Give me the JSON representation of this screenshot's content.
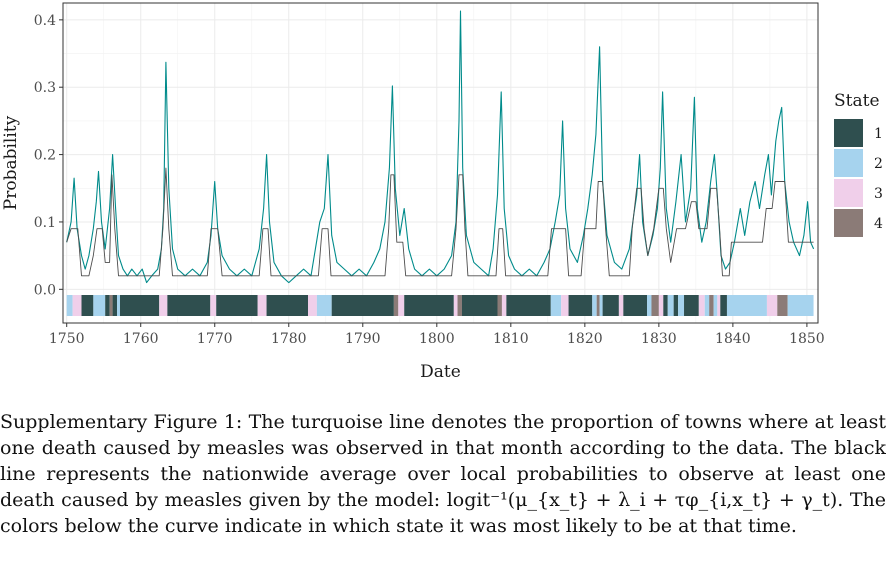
{
  "caption": "Supplementary Figure 1: The turquoise line denotes the proportion of towns where at least one death caused by measles was observed in that month according to the data. The black line represents the nationwide average over local probabilities to observe at least one death caused by measles given by the model: logit⁻¹(μ_{x_t} + λ_i + τφ_{i,x_t} + γ_t). The colors below the curve indicate in which state it was most likely to be at that time.",
  "chart_data": {
    "type": "line",
    "title": "",
    "xlabel": "Date",
    "ylabel": "Probability",
    "xlim": [
      1749.5,
      1851.5
    ],
    "ylim": [
      -0.05,
      0.425
    ],
    "x_ticks": [
      1750,
      1760,
      1770,
      1780,
      1790,
      1800,
      1810,
      1820,
      1830,
      1840,
      1850
    ],
    "y_ticks": [
      0.0,
      0.1,
      0.2,
      0.3,
      0.4
    ],
    "y_tick_labels": [
      "0.0",
      "0.1",
      "0.2",
      "0.3",
      "0.4"
    ],
    "grid": true,
    "legend": {
      "title": "State",
      "position": "right",
      "entries": [
        {
          "label": "1",
          "color": "#2f4f4f"
        },
        {
          "label": "2",
          "color": "#a6d3ee"
        },
        {
          "label": "3",
          "color": "#f0cfea"
        },
        {
          "label": "4",
          "color": "#8b7b77"
        }
      ]
    },
    "series": [
      {
        "color": "#008b8b",
        "points": [
          [
            1750,
            0.07
          ],
          [
            1750.6,
            0.1
          ],
          [
            1751,
            0.165
          ],
          [
            1751.4,
            0.09
          ],
          [
            1752,
            0.05
          ],
          [
            1752.5,
            0.03
          ],
          [
            1753,
            0.05
          ],
          [
            1753.6,
            0.09
          ],
          [
            1754,
            0.13
          ],
          [
            1754.3,
            0.175
          ],
          [
            1754.7,
            0.1
          ],
          [
            1755.2,
            0.06
          ],
          [
            1755.8,
            0.12
          ],
          [
            1756.2,
            0.2
          ],
          [
            1756.6,
            0.12
          ],
          [
            1757,
            0.05
          ],
          [
            1757.6,
            0.03
          ],
          [
            1758.2,
            0.02
          ],
          [
            1758.8,
            0.03
          ],
          [
            1759.5,
            0.02
          ],
          [
            1760.2,
            0.03
          ],
          [
            1760.8,
            0.01
          ],
          [
            1761.5,
            0.02
          ],
          [
            1762.3,
            0.03
          ],
          [
            1762.8,
            0.06
          ],
          [
            1763.1,
            0.12
          ],
          [
            1763.4,
            0.337
          ],
          [
            1763.8,
            0.15
          ],
          [
            1764.3,
            0.06
          ],
          [
            1765,
            0.03
          ],
          [
            1766,
            0.02
          ],
          [
            1767,
            0.03
          ],
          [
            1768,
            0.02
          ],
          [
            1769,
            0.04
          ],
          [
            1769.5,
            0.08
          ],
          [
            1770,
            0.16
          ],
          [
            1770.4,
            0.09
          ],
          [
            1771,
            0.05
          ],
          [
            1772,
            0.03
          ],
          [
            1773,
            0.02
          ],
          [
            1774,
            0.03
          ],
          [
            1775,
            0.02
          ],
          [
            1776,
            0.06
          ],
          [
            1776.6,
            0.12
          ],
          [
            1777,
            0.2
          ],
          [
            1777.4,
            0.1
          ],
          [
            1778,
            0.04
          ],
          [
            1779,
            0.02
          ],
          [
            1780,
            0.01
          ],
          [
            1781,
            0.02
          ],
          [
            1782,
            0.03
          ],
          [
            1783,
            0.02
          ],
          [
            1783.6,
            0.06
          ],
          [
            1784.2,
            0.1
          ],
          [
            1784.8,
            0.12
          ],
          [
            1785.3,
            0.2
          ],
          [
            1785.8,
            0.08
          ],
          [
            1786.5,
            0.04
          ],
          [
            1787.5,
            0.03
          ],
          [
            1788.5,
            0.02
          ],
          [
            1789.5,
            0.03
          ],
          [
            1790.5,
            0.02
          ],
          [
            1791.5,
            0.04
          ],
          [
            1792.3,
            0.06
          ],
          [
            1793,
            0.1
          ],
          [
            1793.6,
            0.18
          ],
          [
            1794,
            0.302
          ],
          [
            1794.4,
            0.15
          ],
          [
            1795,
            0.08
          ],
          [
            1795.6,
            0.12
          ],
          [
            1796.2,
            0.06
          ],
          [
            1797,
            0.03
          ],
          [
            1798,
            0.02
          ],
          [
            1799,
            0.03
          ],
          [
            1800,
            0.02
          ],
          [
            1801,
            0.03
          ],
          [
            1802,
            0.05
          ],
          [
            1802.6,
            0.1
          ],
          [
            1803,
            0.25
          ],
          [
            1803.2,
            0.413
          ],
          [
            1803.5,
            0.18
          ],
          [
            1804,
            0.08
          ],
          [
            1805,
            0.04
          ],
          [
            1806,
            0.03
          ],
          [
            1807,
            0.02
          ],
          [
            1807.6,
            0.06
          ],
          [
            1808.2,
            0.14
          ],
          [
            1808.7,
            0.293
          ],
          [
            1809.1,
            0.12
          ],
          [
            1809.7,
            0.05
          ],
          [
            1810.5,
            0.03
          ],
          [
            1811.5,
            0.02
          ],
          [
            1812.5,
            0.03
          ],
          [
            1813.5,
            0.02
          ],
          [
            1814.5,
            0.04
          ],
          [
            1815.3,
            0.06
          ],
          [
            1816,
            0.1
          ],
          [
            1816.6,
            0.14
          ],
          [
            1817,
            0.25
          ],
          [
            1817.4,
            0.12
          ],
          [
            1818,
            0.06
          ],
          [
            1819,
            0.04
          ],
          [
            1819.8,
            0.08
          ],
          [
            1820.4,
            0.12
          ],
          [
            1821,
            0.17
          ],
          [
            1821.5,
            0.23
          ],
          [
            1822,
            0.36
          ],
          [
            1822.4,
            0.16
          ],
          [
            1823,
            0.08
          ],
          [
            1824,
            0.04
          ],
          [
            1825,
            0.03
          ],
          [
            1826,
            0.06
          ],
          [
            1826.6,
            0.11
          ],
          [
            1827,
            0.14
          ],
          [
            1827.4,
            0.2
          ],
          [
            1827.8,
            0.1
          ],
          [
            1828.5,
            0.05
          ],
          [
            1829.2,
            0.08
          ],
          [
            1829.8,
            0.12
          ],
          [
            1830.2,
            0.18
          ],
          [
            1830.5,
            0.293
          ],
          [
            1831,
            0.12
          ],
          [
            1831.6,
            0.07
          ],
          [
            1832.3,
            0.13
          ],
          [
            1833,
            0.2
          ],
          [
            1833.6,
            0.1
          ],
          [
            1834.3,
            0.15
          ],
          [
            1834.8,
            0.285
          ],
          [
            1835.2,
            0.12
          ],
          [
            1835.8,
            0.07
          ],
          [
            1836.4,
            0.1
          ],
          [
            1837,
            0.16
          ],
          [
            1837.5,
            0.2
          ],
          [
            1837.9,
            0.14
          ],
          [
            1838.4,
            0.05
          ],
          [
            1839,
            0.03
          ],
          [
            1839.6,
            0.04
          ],
          [
            1840.2,
            0.07
          ],
          [
            1841,
            0.12
          ],
          [
            1841.6,
            0.08
          ],
          [
            1842.3,
            0.13
          ],
          [
            1843,
            0.16
          ],
          [
            1843.6,
            0.12
          ],
          [
            1844.3,
            0.17
          ],
          [
            1844.8,
            0.2
          ],
          [
            1845.2,
            0.14
          ],
          [
            1845.8,
            0.22
          ],
          [
            1846.2,
            0.25
          ],
          [
            1846.6,
            0.27
          ],
          [
            1847,
            0.16
          ],
          [
            1847.6,
            0.1
          ],
          [
            1848.2,
            0.07
          ],
          [
            1849,
            0.05
          ],
          [
            1849.6,
            0.08
          ],
          [
            1850.1,
            0.13
          ],
          [
            1850.5,
            0.07
          ],
          [
            1850.9,
            0.06
          ]
        ]
      },
      {
        "color": "#4d4d4d",
        "points": [
          [
            1750,
            0.07
          ],
          [
            1750.6,
            0.09
          ],
          [
            1751.5,
            0.09
          ],
          [
            1752,
            0.02
          ],
          [
            1753,
            0.02
          ],
          [
            1753.6,
            0.05
          ],
          [
            1754.1,
            0.09
          ],
          [
            1754.8,
            0.09
          ],
          [
            1755.2,
            0.04
          ],
          [
            1755.8,
            0.04
          ],
          [
            1756.1,
            0.17
          ],
          [
            1756.5,
            0.09
          ],
          [
            1757,
            0.02
          ],
          [
            1760,
            0.02
          ],
          [
            1762.5,
            0.02
          ],
          [
            1763,
            0.09
          ],
          [
            1763.4,
            0.18
          ],
          [
            1763.8,
            0.09
          ],
          [
            1764.3,
            0.02
          ],
          [
            1769,
            0.02
          ],
          [
            1769.5,
            0.09
          ],
          [
            1770.4,
            0.09
          ],
          [
            1771,
            0.02
          ],
          [
            1776,
            0.02
          ],
          [
            1776.5,
            0.09
          ],
          [
            1777.2,
            0.09
          ],
          [
            1777.6,
            0.02
          ],
          [
            1784,
            0.02
          ],
          [
            1784.5,
            0.09
          ],
          [
            1785.3,
            0.09
          ],
          [
            1785.7,
            0.02
          ],
          [
            1793,
            0.02
          ],
          [
            1793.5,
            0.09
          ],
          [
            1793.8,
            0.17
          ],
          [
            1794.2,
            0.17
          ],
          [
            1794.6,
            0.07
          ],
          [
            1795.4,
            0.07
          ],
          [
            1795.8,
            0.02
          ],
          [
            1802,
            0.02
          ],
          [
            1802.6,
            0.09
          ],
          [
            1803,
            0.17
          ],
          [
            1803.5,
            0.17
          ],
          [
            1803.8,
            0.09
          ],
          [
            1804.2,
            0.02
          ],
          [
            1808,
            0.02
          ],
          [
            1808.4,
            0.09
          ],
          [
            1808.9,
            0.09
          ],
          [
            1809.3,
            0.02
          ],
          [
            1815,
            0.02
          ],
          [
            1815.5,
            0.09
          ],
          [
            1817.4,
            0.09
          ],
          [
            1817.8,
            0.02
          ],
          [
            1819.5,
            0.02
          ],
          [
            1820,
            0.09
          ],
          [
            1821.5,
            0.09
          ],
          [
            1821.8,
            0.16
          ],
          [
            1822.4,
            0.16
          ],
          [
            1822.8,
            0.09
          ],
          [
            1823.3,
            0.02
          ],
          [
            1826,
            0.02
          ],
          [
            1826.4,
            0.09
          ],
          [
            1827,
            0.15
          ],
          [
            1827.6,
            0.15
          ],
          [
            1828,
            0.09
          ],
          [
            1828.5,
            0.05
          ],
          [
            1829.3,
            0.09
          ],
          [
            1830,
            0.15
          ],
          [
            1830.6,
            0.15
          ],
          [
            1831,
            0.09
          ],
          [
            1831.6,
            0.04
          ],
          [
            1832.4,
            0.09
          ],
          [
            1833.6,
            0.09
          ],
          [
            1834.4,
            0.13
          ],
          [
            1835,
            0.13
          ],
          [
            1835.4,
            0.09
          ],
          [
            1836.5,
            0.09
          ],
          [
            1837,
            0.15
          ],
          [
            1837.8,
            0.15
          ],
          [
            1838.2,
            0.09
          ],
          [
            1838.6,
            0.02
          ],
          [
            1839.5,
            0.02
          ],
          [
            1839.8,
            0.07
          ],
          [
            1844,
            0.07
          ],
          [
            1844.5,
            0.12
          ],
          [
            1845.3,
            0.12
          ],
          [
            1845.7,
            0.16
          ],
          [
            1847,
            0.16
          ],
          [
            1847.5,
            0.07
          ],
          [
            1850.9,
            0.07
          ]
        ]
      }
    ],
    "state_bar": [
      [
        1750,
        1750.8,
        2
      ],
      [
        1750.8,
        1752,
        3
      ],
      [
        1752,
        1753.6,
        1
      ],
      [
        1753.6,
        1755.2,
        2
      ],
      [
        1755.2,
        1755.8,
        1
      ],
      [
        1755.8,
        1756.2,
        4
      ],
      [
        1756.2,
        1756.8,
        1
      ],
      [
        1756.8,
        1757.2,
        2
      ],
      [
        1757.2,
        1762.5,
        1
      ],
      [
        1762.5,
        1763.6,
        3
      ],
      [
        1763.6,
        1769.4,
        1
      ],
      [
        1769.4,
        1770.2,
        3
      ],
      [
        1770.2,
        1775.8,
        1
      ],
      [
        1775.8,
        1777,
        3
      ],
      [
        1777,
        1782.6,
        1
      ],
      [
        1782.6,
        1783.8,
        3
      ],
      [
        1783.8,
        1785.8,
        2
      ],
      [
        1785.8,
        1794.2,
        1
      ],
      [
        1794.2,
        1794.8,
        4
      ],
      [
        1794.8,
        1795.6,
        3
      ],
      [
        1795.6,
        1802.3,
        1
      ],
      [
        1802.3,
        1802.8,
        3
      ],
      [
        1802.8,
        1803.4,
        4
      ],
      [
        1803.4,
        1808.2,
        1
      ],
      [
        1808.2,
        1808.8,
        4
      ],
      [
        1808.8,
        1809.4,
        3
      ],
      [
        1809.4,
        1815.4,
        1
      ],
      [
        1815.4,
        1816.8,
        2
      ],
      [
        1816.8,
        1817.8,
        3
      ],
      [
        1817.8,
        1821,
        1
      ],
      [
        1821,
        1821.6,
        2
      ],
      [
        1821.6,
        1822,
        4
      ],
      [
        1822,
        1822.4,
        2
      ],
      [
        1822.4,
        1824.6,
        1
      ],
      [
        1824.6,
        1825.2,
        3
      ],
      [
        1825.2,
        1828.4,
        1
      ],
      [
        1828.4,
        1829,
        2
      ],
      [
        1829,
        1830,
        4
      ],
      [
        1830,
        1830.6,
        3
      ],
      [
        1830.6,
        1831.2,
        1
      ],
      [
        1831.2,
        1832,
        2
      ],
      [
        1832,
        1832.6,
        1
      ],
      [
        1832.6,
        1833.4,
        2
      ],
      [
        1833.4,
        1835.4,
        1
      ],
      [
        1835.4,
        1836.2,
        3
      ],
      [
        1836.2,
        1836.8,
        2
      ],
      [
        1836.8,
        1837.4,
        4
      ],
      [
        1837.4,
        1837.9,
        2
      ],
      [
        1837.9,
        1838.3,
        3
      ],
      [
        1838.3,
        1839.2,
        1
      ],
      [
        1839.2,
        1844.6,
        2
      ],
      [
        1844.6,
        1846,
        3
      ],
      [
        1846,
        1847.4,
        4
      ],
      [
        1847.4,
        1850.9,
        2
      ]
    ]
  }
}
